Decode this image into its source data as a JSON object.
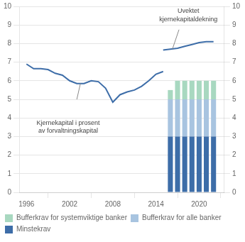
{
  "chart_data": {
    "type": "bar",
    "stacked": true,
    "grid": "y",
    "legend": "bottom",
    "series": [
      {
        "name": "Minstekrav",
        "type": "bar",
        "color": "#3d6da8",
        "x": [
          2016,
          2017,
          2018,
          2019,
          2020,
          2021,
          2022
        ],
        "values": [
          3,
          3,
          3,
          3,
          3,
          3,
          3
        ]
      },
      {
        "name": "Bufferkrav for alle banker",
        "type": "bar",
        "color": "#a8c4e0",
        "x": [
          2016,
          2017,
          2018,
          2019,
          2020,
          2021,
          2022
        ],
        "values": [
          2,
          2,
          2,
          2,
          2,
          2,
          2
        ]
      },
      {
        "name": "Bufferkrav for systemviktige banker",
        "type": "bar",
        "color": "#a8d8c0",
        "x": [
          2016,
          2017,
          2018,
          2019,
          2020,
          2021,
          2022
        ],
        "values": [
          0.5,
          1,
          1,
          1,
          1,
          1,
          1
        ]
      },
      {
        "type": "line",
        "color": "#3d6da8",
        "x": [
          1996,
          1997,
          1998,
          1999,
          2000,
          2001,
          2002,
          2003,
          2004,
          2005,
          2006,
          2007,
          2008,
          2009,
          2010,
          2011,
          2012,
          2013,
          2014,
          2015
        ],
        "values": [
          6.9,
          6.65,
          6.65,
          6.6,
          6.4,
          6.3,
          6.0,
          5.85,
          5.85,
          6.0,
          5.95,
          5.6,
          4.85,
          5.25,
          5.4,
          5.5,
          5.7,
          6.0,
          6.35,
          6.5
        ]
      },
      {
        "type": "line",
        "color": "#3d6da8",
        "x": [
          2015,
          2016,
          2017,
          2018,
          2019,
          2020,
          2021,
          2022
        ],
        "values": [
          7.65,
          7.7,
          7.75,
          7.85,
          7.95,
          8.05,
          8.1,
          8.1
        ]
      }
    ],
    "annotations": [
      {
        "text": "Kjernekapital i prosent\nav forvaltningskapital",
        "x": 2001.8,
        "y": 3.9,
        "anchor": "top",
        "line_from": [
          2003.0,
          5.0
        ],
        "line_to": [
          2003.5,
          5.85
        ]
      },
      {
        "text": "Uvektet\nkjernekapitaldekning",
        "x": 2018.5,
        "y": 9.05,
        "anchor": "bottom",
        "line_from": [
          2017.2,
          8.75
        ],
        "line_to": [
          2016.3,
          7.72
        ]
      }
    ],
    "xlim": [
      1995.0,
      2023.5
    ],
    "xticks": [
      1996,
      2002,
      2008,
      2014,
      2020
    ],
    "ylim": [
      0,
      10
    ],
    "yticks": [
      0,
      1,
      2,
      3,
      4,
      5,
      6,
      7,
      8,
      9,
      10
    ],
    "y2lim": [
      0,
      10
    ],
    "y2ticks": [
      0,
      1,
      2,
      3,
      4,
      5,
      6,
      7,
      8,
      9,
      10
    ]
  }
}
